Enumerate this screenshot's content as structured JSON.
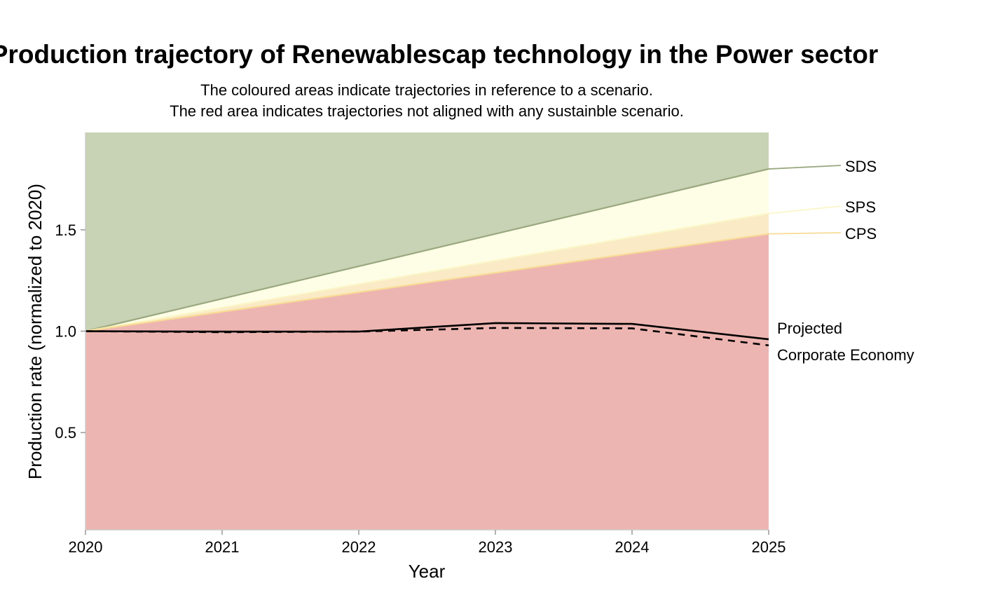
{
  "chart_data": {
    "type": "area",
    "title": "Production trajectory of Renewablescap technology in the Power sector",
    "subtitle_lines": [
      "The coloured areas indicate trajectories in reference to a scenario.",
      "The red area indicates trajectories not aligned with any sustainble scenario."
    ],
    "xlabel": "Year",
    "ylabel": "Production rate (normalized to 2020)",
    "x": [
      2020,
      2021,
      2022,
      2023,
      2024,
      2025
    ],
    "xlim": [
      2020,
      2025
    ],
    "ylim": [
      0.02,
      1.98
    ],
    "yticks": [
      0.5,
      1.0,
      1.5
    ],
    "ytick_labels": [
      "0.5",
      "1.0",
      "1.5"
    ],
    "grid": false,
    "scenarios": [
      {
        "name": "SDS",
        "values": [
          1.0,
          1.16,
          1.32,
          1.48,
          1.64,
          1.8
        ],
        "fill": "#c8d2b4",
        "line": "#9aa880"
      },
      {
        "name": "SPS",
        "values": [
          1.0,
          1.116,
          1.232,
          1.348,
          1.464,
          1.58
        ],
        "fill": "#fefee6",
        "line": "#fbf6c8"
      },
      {
        "name": "CPS",
        "values": [
          1.0,
          1.096,
          1.192,
          1.288,
          1.384,
          1.48
        ],
        "fill": "#faeac6",
        "line": "#f8dc96"
      }
    ],
    "misaligned_fill": "#edb5b1",
    "series": [
      {
        "name": "Projected",
        "values": [
          1.0,
          0.998,
          0.998,
          1.04,
          1.036,
          0.96
        ],
        "style": "solid"
      },
      {
        "name": "Corporate Economy",
        "values": [
          1.0,
          0.995,
          0.998,
          1.016,
          1.014,
          0.93
        ],
        "style": "dashed"
      }
    ]
  }
}
